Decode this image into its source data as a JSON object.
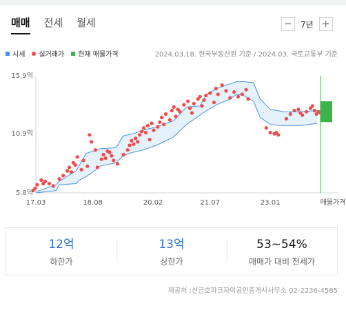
{
  "tabs": [
    {
      "label": "매매",
      "active": true
    },
    {
      "label": "전세",
      "active": false
    },
    {
      "label": "월세",
      "active": false
    }
  ],
  "period": {
    "minus": "−",
    "value": "7년",
    "plus": "+"
  },
  "legend": [
    {
      "label": "시세",
      "color": "#4a90e2"
    },
    {
      "label": "실거래가",
      "color": "#ef4b4b"
    },
    {
      "label": "현재 매물가격",
      "color": "#3cb44a"
    }
  ],
  "source_note": "2024.03.18. 한국부동산원 기준 / 2024.03. 국토교통부 기준",
  "chart_data": {
    "type": "scatter",
    "y_ticks": [
      "15.9억",
      "10.9억",
      "5.8억"
    ],
    "x_ticks": [
      "17.03",
      "18.08",
      "20.02",
      "21.07",
      "23.01",
      "매물가격"
    ],
    "ylim": [
      5.8,
      15.9
    ],
    "xlim": [
      "2017.03",
      "2024.04"
    ],
    "grid": false,
    "series": [
      {
        "name": "시세",
        "kind": "band",
        "color": "#4a90e2",
        "x": [
          "2017.03",
          "2017.09",
          "2017.10",
          "2018.03",
          "2018.04",
          "2018.06",
          "2018.09",
          "2018.10",
          "2019.03",
          "2019.05",
          "2019.08",
          "2019.11",
          "2020.03",
          "2020.08",
          "2020.12",
          "2021.04",
          "2021.06",
          "2021.09",
          "2022.01",
          "2022.03",
          "2022.05",
          "2022.08",
          "2022.10",
          "2023.01",
          "2023.05",
          "2023.10",
          "2024.03"
        ],
        "low": [
          5.8,
          6.0,
          6.5,
          6.6,
          6.9,
          7.2,
          7.8,
          8.1,
          8.4,
          9.0,
          9.3,
          9.5,
          9.9,
          10.6,
          11.7,
          12.5,
          12.9,
          13.4,
          13.9,
          14.3,
          14.2,
          13.7,
          12.3,
          11.7,
          11.6,
          11.6,
          11.8
        ],
        "high": [
          5.9,
          6.5,
          6.8,
          7.7,
          8.2,
          9.2,
          9.5,
          9.6,
          9.7,
          10.7,
          10.9,
          11.2,
          11.5,
          12.0,
          13.2,
          13.3,
          14.3,
          14.8,
          15.2,
          15.4,
          15.4,
          15.3,
          13.9,
          13.0,
          12.8,
          12.8,
          12.9
        ]
      },
      {
        "name": "실거래가",
        "kind": "points",
        "color": "#ef4b4b",
        "x": [
          2017.1,
          2017.15,
          2017.2,
          2017.3,
          2017.35,
          2017.4,
          2017.5,
          2017.6,
          2017.75,
          2017.85,
          2017.95,
          2018.0,
          2018.05,
          2018.1,
          2018.15,
          2018.2,
          2018.3,
          2018.35,
          2018.45,
          2018.5,
          2018.55,
          2018.65,
          2018.7,
          2018.8,
          2018.85,
          2018.9,
          2018.95,
          2019.0,
          2019.05,
          2019.1,
          2019.2,
          2019.35,
          2019.45,
          2019.5,
          2019.55,
          2019.6,
          2019.65,
          2019.7,
          2019.75,
          2019.8,
          2019.85,
          2019.9,
          2019.95,
          2020.0,
          2020.05,
          2020.1,
          2020.2,
          2020.25,
          2020.3,
          2020.35,
          2020.4,
          2020.5,
          2020.55,
          2020.6,
          2020.65,
          2020.7,
          2020.75,
          2020.85,
          2020.95,
          2021.0,
          2021.05,
          2021.1,
          2021.2,
          2021.25,
          2021.3,
          2021.35,
          2021.4,
          2021.5,
          2021.6,
          2021.65,
          2021.7,
          2021.8,
          2021.9,
          2022.0,
          2022.1,
          2022.2,
          2022.3,
          2022.4,
          2022.45,
          2022.9,
          2023.0,
          2023.1,
          2023.15,
          2023.2,
          2023.4,
          2023.5,
          2023.6,
          2023.7,
          2023.75,
          2023.8,
          2023.9,
          2024.0,
          2024.05,
          2024.1,
          2024.15,
          2024.2,
          2024.25
        ],
        "y": [
          6.0,
          6.2,
          6.5,
          6.9,
          6.6,
          6.8,
          6.6,
          6.4,
          7.0,
          7.3,
          7.7,
          8.0,
          7.6,
          8.4,
          8.2,
          8.9,
          7.8,
          8.6,
          8.1,
          10.8,
          10.2,
          9.5,
          8.0,
          8.7,
          9.1,
          8.8,
          9.4,
          9.3,
          9.0,
          8.6,
          8.3,
          9.1,
          9.5,
          9.9,
          10.3,
          10.0,
          10.5,
          10.2,
          10.8,
          11.1,
          11.4,
          11.0,
          11.6,
          10.4,
          11.8,
          11.2,
          11.5,
          11.9,
          12.3,
          11.7,
          12.6,
          12.1,
          12.9,
          13.2,
          12.4,
          13.0,
          12.8,
          13.4,
          13.7,
          13.1,
          12.7,
          13.5,
          13.9,
          14.1,
          13.3,
          13.8,
          14.2,
          14.4,
          13.6,
          14.8,
          14.3,
          15.1,
          14.6,
          14.0,
          14.5,
          14.1,
          14.3,
          14.7,
          13.9,
          11.4,
          11.0,
          10.9,
          11.0,
          10.8,
          12.2,
          12.6,
          12.9,
          13.0,
          12.7,
          12.5,
          12.8,
          13.1,
          13.3,
          12.9,
          12.6,
          12.8,
          12.7
        ]
      },
      {
        "name": "현재 매물가격",
        "kind": "range",
        "color": "#3cb44a",
        "low": 11.9,
        "high": 13.7
      }
    ]
  },
  "summary": [
    {
      "value": "12억",
      "label": "하한가",
      "highlight": true
    },
    {
      "value": "13억",
      "label": "상한가",
      "highlight": true
    },
    {
      "value": "53~54%",
      "label": "매매가 대비 전세가",
      "highlight": false
    }
  ],
  "provider": "제공처 :신금호파크자이공인중개사사무소 02-2236-4585"
}
